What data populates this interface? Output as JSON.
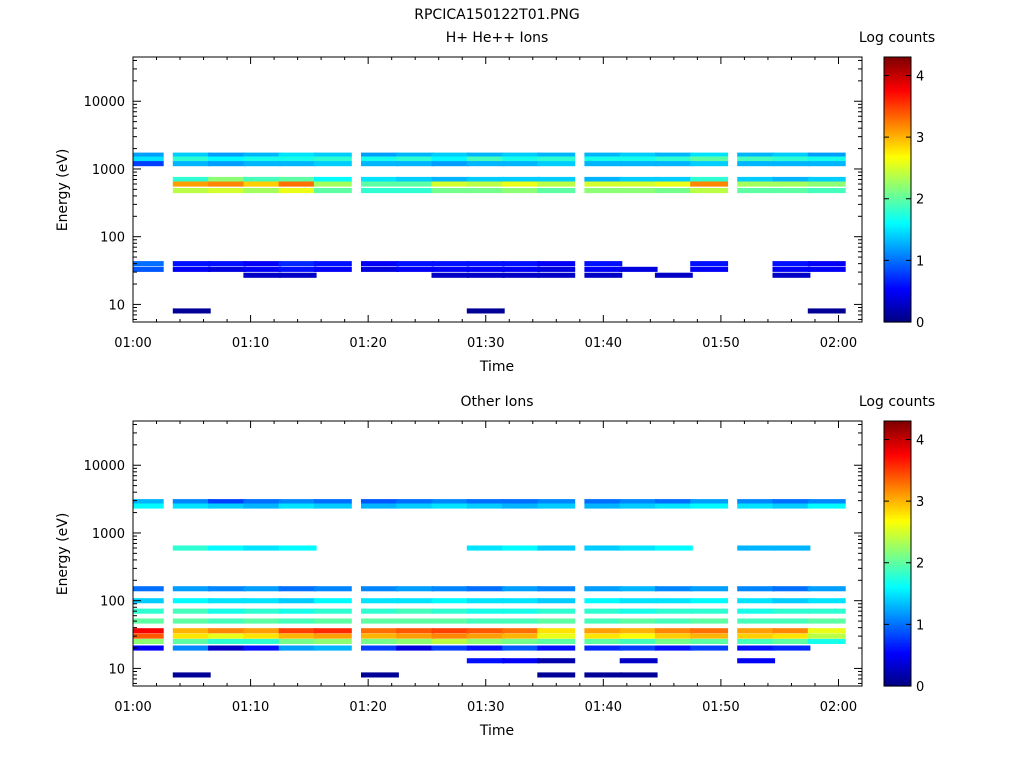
{
  "figure_title": "RPCICA150122T01.PNG",
  "colors": {
    "colormap": [
      "#00007f",
      "#0000ff",
      "#0080ff",
      "#00ffff",
      "#80ff80",
      "#ffff00",
      "#ff8000",
      "#ff0000",
      "#7f0000"
    ],
    "background": "#ffffff",
    "axes": "#000000"
  },
  "chart_data": [
    {
      "type": "heatmap",
      "title": "H+ He++ Ions",
      "xlabel": "Time",
      "ylabel": "Energy (eV)",
      "y_scale": "log",
      "x_range": [
        "01:00",
        "02:02"
      ],
      "y_range": [
        5.5,
        45000
      ],
      "x_ticks": [
        "01:00",
        "01:10",
        "01:20",
        "01:30",
        "01:40",
        "01:50",
        "02:00"
      ],
      "y_ticks": [
        "10",
        "100",
        "1000",
        "10000"
      ],
      "colorbar": {
        "label": "Log counts",
        "range": [
          0,
          4.3
        ],
        "ticks": [
          "0",
          "1",
          "2",
          "3",
          "4"
        ]
      },
      "time_bins": [
        "01:01",
        "01:05",
        "01:08",
        "01:11",
        "01:14",
        "01:17",
        "01:21",
        "01:24",
        "01:27",
        "01:30",
        "01:33",
        "01:36",
        "01:40",
        "01:43",
        "01:46",
        "01:49",
        "01:53",
        "01:56",
        "01:59"
      ],
      "energy_bands": [
        {
          "energy": 1600,
          "values": [
            1.2,
            1.4,
            1.2,
            1.3,
            1.5,
            1.4,
            1.2,
            1.3,
            1.4,
            1.3,
            1.4,
            1.3,
            1.3,
            1.4,
            1.3,
            1.5,
            1.3,
            1.4,
            1.2
          ]
        },
        {
          "energy": 1400,
          "values": [
            1.5,
            1.8,
            1.6,
            1.7,
            1.7,
            1.8,
            1.7,
            1.8,
            1.6,
            1.9,
            1.7,
            1.8,
            1.7,
            1.7,
            1.8,
            2.0,
            1.9,
            1.8,
            1.7
          ]
        },
        {
          "energy": 1200,
          "values": [
            0.8,
            1.3,
            1.2,
            1.3,
            1.3,
            1.4,
            1.3,
            1.3,
            1.2,
            1.3,
            1.3,
            1.4,
            1.3,
            1.3,
            1.3,
            1.4,
            1.3,
            1.3,
            1.3
          ]
        },
        {
          "energy": 700,
          "values": [
            0,
            1.8,
            2.2,
            1.9,
            2.0,
            1.6,
            1.5,
            1.4,
            1.3,
            1.4,
            1.4,
            1.4,
            1.3,
            1.4,
            1.4,
            1.8,
            1.4,
            1.3,
            1.4
          ]
        },
        {
          "energy": 600,
          "values": [
            0,
            3.1,
            3.2,
            2.9,
            3.3,
            2.3,
            2.0,
            2.0,
            2.5,
            2.4,
            2.6,
            2.4,
            2.5,
            2.5,
            2.6,
            3.2,
            2.3,
            2.3,
            2.2
          ]
        },
        {
          "energy": 480,
          "values": [
            0,
            2.4,
            2.5,
            2.3,
            2.6,
            2.0,
            1.8,
            1.8,
            2.1,
            2.1,
            2.2,
            2.0,
            2.2,
            2.2,
            2.1,
            2.4,
            2.0,
            2.0,
            1.9
          ]
        },
        {
          "energy": 40,
          "values": [
            1.0,
            0.6,
            0.6,
            0.5,
            0.7,
            0.6,
            0.5,
            0.6,
            0.6,
            0.6,
            0.6,
            0.5,
            0.6,
            0,
            0,
            0.6,
            0,
            0.6,
            0.5
          ]
        },
        {
          "energy": 33,
          "values": [
            0.9,
            0.5,
            0.4,
            0.5,
            0.6,
            0.5,
            0.4,
            0.5,
            0.5,
            0.5,
            0.5,
            0.4,
            0.5,
            0.4,
            0,
            0.5,
            0,
            0.5,
            0.5
          ]
        },
        {
          "energy": 27,
          "values": [
            0,
            0,
            0,
            0.3,
            0.3,
            0,
            0,
            0,
            0.3,
            0.3,
            0.3,
            0.3,
            0.3,
            0,
            0.3,
            0,
            0,
            0.3,
            0
          ]
        },
        {
          "energy": 8,
          "values": [
            0,
            0.1,
            0,
            0,
            0,
            0,
            0,
            0,
            0,
            0.1,
            0,
            0,
            0,
            0,
            0,
            0,
            0,
            0,
            0.1
          ]
        }
      ]
    },
    {
      "type": "heatmap",
      "title": "Other Ions",
      "xlabel": "Time",
      "ylabel": "Energy (eV)",
      "y_scale": "log",
      "x_range": [
        "01:00",
        "02:02"
      ],
      "y_range": [
        5.5,
        45000
      ],
      "x_ticks": [
        "01:00",
        "01:10",
        "01:20",
        "01:30",
        "01:40",
        "01:50",
        "02:00"
      ],
      "y_ticks": [
        "10",
        "100",
        "1000",
        "10000"
      ],
      "colorbar": {
        "label": "Log counts",
        "range": [
          0,
          4.3
        ],
        "ticks": [
          "0",
          "1",
          "2",
          "3",
          "4"
        ]
      },
      "time_bins": [
        "01:01",
        "01:05",
        "01:08",
        "01:11",
        "01:14",
        "01:17",
        "01:21",
        "01:24",
        "01:27",
        "01:30",
        "01:33",
        "01:36",
        "01:40",
        "01:43",
        "01:46",
        "01:49",
        "01:53",
        "01:56",
        "01:59"
      ],
      "energy_bands": [
        {
          "energy": 2900,
          "values": [
            1.3,
            1.1,
            0.8,
            1.0,
            1.1,
            1.0,
            0.9,
            1.0,
            1.1,
            1.0,
            1.0,
            1.1,
            1.0,
            1.1,
            1.0,
            1.2,
            1.1,
            1.0,
            1.1
          ]
        },
        {
          "energy": 2500,
          "values": [
            1.6,
            1.5,
            1.4,
            1.3,
            1.5,
            1.4,
            1.3,
            1.4,
            1.5,
            1.4,
            1.3,
            1.4,
            1.3,
            1.4,
            1.5,
            1.6,
            1.5,
            1.4,
            1.6
          ]
        },
        {
          "energy": 600,
          "values": [
            0,
            1.8,
            1.6,
            1.5,
            1.6,
            0,
            0,
            0,
            0,
            1.5,
            1.6,
            1.4,
            1.4,
            1.5,
            1.6,
            0,
            1.3,
            1.3,
            0
          ]
        },
        {
          "energy": 150,
          "values": [
            1.0,
            1.2,
            1.1,
            1.2,
            1.0,
            1.1,
            1.1,
            1.2,
            1.1,
            1.0,
            1.2,
            1.1,
            1.2,
            1.3,
            1.1,
            1.2,
            1.1,
            1.0,
            1.2
          ]
        },
        {
          "energy": 100,
          "values": [
            1.4,
            1.6,
            1.5,
            1.5,
            1.4,
            1.6,
            1.5,
            1.5,
            1.6,
            1.5,
            1.5,
            1.4,
            1.6,
            1.5,
            1.5,
            1.6,
            1.5,
            1.4,
            1.5
          ]
        },
        {
          "energy": 70,
          "values": [
            1.8,
            1.9,
            1.7,
            1.8,
            1.7,
            1.8,
            1.8,
            1.9,
            1.8,
            1.7,
            1.7,
            1.8,
            1.8,
            1.7,
            1.8,
            1.8,
            1.7,
            1.8,
            1.8
          ]
        },
        {
          "energy": 50,
          "values": [
            2.0,
            2.0,
            1.9,
            2.0,
            1.9,
            2.0,
            2.0,
            2.0,
            2.0,
            1.9,
            1.9,
            2.0,
            1.9,
            2.0,
            1.9,
            2.0,
            1.9,
            1.9,
            2.0
          ]
        },
        {
          "energy": 36,
          "values": [
            3.8,
            3.0,
            3.2,
            3.1,
            3.5,
            3.6,
            3.3,
            3.4,
            3.5,
            3.4,
            3.3,
            2.8,
            3.1,
            3.0,
            3.2,
            3.3,
            3.1,
            3.2,
            2.6
          ]
        },
        {
          "energy": 30,
          "values": [
            3.4,
            2.8,
            2.6,
            2.8,
            3.0,
            3.1,
            3.0,
            3.1,
            3.2,
            3.1,
            3.0,
            2.6,
            2.8,
            2.7,
            2.9,
            3.0,
            2.9,
            2.8,
            2.4
          ]
        },
        {
          "energy": 25,
          "values": [
            2.2,
            2.0,
            1.8,
            1.8,
            2.1,
            2.2,
            2.1,
            2.2,
            2.4,
            2.2,
            2.1,
            2.0,
            2.0,
            1.9,
            2.1,
            2.0,
            1.9,
            2.0,
            1.7
          ]
        },
        {
          "energy": 20,
          "values": [
            0.5,
            1.1,
            0.3,
            0.6,
            1.2,
            1.3,
            0.8,
            0.4,
            0.8,
            0.6,
            0.9,
            0.6,
            0.7,
            0.8,
            0.6,
            0.8,
            0.6,
            0.7,
            0
          ]
        },
        {
          "energy": 13,
          "values": [
            0,
            0,
            0,
            0,
            0,
            0,
            0,
            0,
            0,
            0.6,
            0.5,
            0.2,
            0,
            0.3,
            0,
            0,
            0.5,
            0,
            0
          ]
        },
        {
          "energy": 8,
          "values": [
            0,
            0.1,
            0,
            0,
            0,
            0,
            0.1,
            0,
            0,
            0,
            0,
            0.1,
            0.1,
            0.1,
            0,
            0,
            0,
            0,
            0
          ]
        }
      ]
    }
  ]
}
